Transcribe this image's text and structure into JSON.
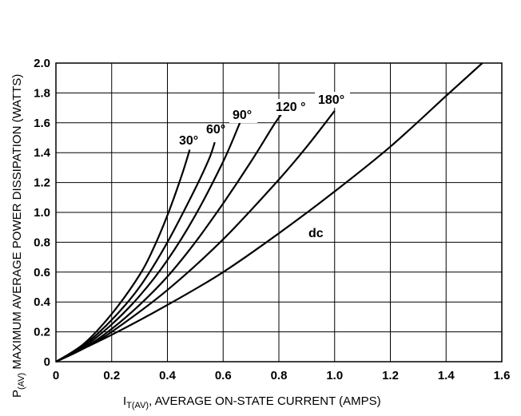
{
  "chart_data": {
    "type": "line",
    "xlabel": {
      "main": "I",
      "sub": "T(AV)",
      "rest": ", AVERAGE ON-STATE CURRENT (AMPS)"
    },
    "ylabel": {
      "main": "P",
      "sub": "(AV)",
      "rest": " MAXIMUM AVERAGE POWER DISSIPATION (WATTS)"
    },
    "xlim": [
      0,
      1.6
    ],
    "ylim": [
      0,
      2.0
    ],
    "x_ticks": [
      {
        "value": 0,
        "label": "0"
      },
      {
        "value": 0.2,
        "label": "0.2"
      },
      {
        "value": 0.4,
        "label": "0.4"
      },
      {
        "value": 0.6,
        "label": "0.6"
      },
      {
        "value": 0.8,
        "label": "0.8"
      },
      {
        "value": 1.0,
        "label": "1.0"
      },
      {
        "value": 1.2,
        "label": "1.2"
      },
      {
        "value": 1.4,
        "label": "1.4"
      },
      {
        "value": 1.6,
        "label": "1.6"
      }
    ],
    "y_ticks": [
      {
        "value": 0,
        "label": "0"
      },
      {
        "value": 0.2,
        "label": "0.2"
      },
      {
        "value": 0.4,
        "label": "0.4"
      },
      {
        "value": 0.6,
        "label": "0.6"
      },
      {
        "value": 0.8,
        "label": "0.8"
      },
      {
        "value": 1.0,
        "label": "1.0"
      },
      {
        "value": 1.2,
        "label": "1.2"
      },
      {
        "value": 1.4,
        "label": "1.4"
      },
      {
        "value": 1.6,
        "label": "1.6"
      },
      {
        "value": 1.8,
        "label": "1.8"
      },
      {
        "value": 2.0,
        "label": "2.0"
      }
    ],
    "grid": true,
    "series": [
      {
        "name": "30°",
        "points": [
          [
            0,
            0
          ],
          [
            0.1,
            0.12
          ],
          [
            0.2,
            0.32
          ],
          [
            0.3,
            0.58
          ],
          [
            0.35,
            0.76
          ],
          [
            0.4,
            0.98
          ],
          [
            0.45,
            1.24
          ],
          [
            0.48,
            1.42
          ]
        ]
      },
      {
        "name": "60°",
        "points": [
          [
            0,
            0
          ],
          [
            0.1,
            0.11
          ],
          [
            0.2,
            0.28
          ],
          [
            0.3,
            0.5
          ],
          [
            0.4,
            0.8
          ],
          [
            0.5,
            1.16
          ],
          [
            0.55,
            1.36
          ],
          [
            0.57,
            1.47
          ]
        ]
      },
      {
        "name": "90°",
        "points": [
          [
            0,
            0
          ],
          [
            0.1,
            0.1
          ],
          [
            0.2,
            0.25
          ],
          [
            0.3,
            0.44
          ],
          [
            0.4,
            0.68
          ],
          [
            0.5,
            0.98
          ],
          [
            0.6,
            1.34
          ],
          [
            0.66,
            1.6
          ]
        ]
      },
      {
        "name": "120 °",
        "points": [
          [
            0,
            0
          ],
          [
            0.1,
            0.09
          ],
          [
            0.2,
            0.22
          ],
          [
            0.3,
            0.38
          ],
          [
            0.4,
            0.57
          ],
          [
            0.5,
            0.8
          ],
          [
            0.6,
            1.06
          ],
          [
            0.7,
            1.34
          ],
          [
            0.78,
            1.58
          ],
          [
            0.81,
            1.66
          ]
        ]
      },
      {
        "name": "180°",
        "points": [
          [
            0,
            0
          ],
          [
            0.1,
            0.09
          ],
          [
            0.2,
            0.2
          ],
          [
            0.4,
            0.48
          ],
          [
            0.6,
            0.82
          ],
          [
            0.8,
            1.22
          ],
          [
            0.9,
            1.44
          ],
          [
            1.0,
            1.68
          ]
        ]
      },
      {
        "name": "dc",
        "points": [
          [
            0,
            0
          ],
          [
            0.2,
            0.18
          ],
          [
            0.4,
            0.38
          ],
          [
            0.6,
            0.6
          ],
          [
            0.8,
            0.86
          ],
          [
            1.0,
            1.14
          ],
          [
            1.2,
            1.44
          ],
          [
            1.4,
            1.78
          ],
          [
            1.53,
            2.0
          ]
        ]
      }
    ]
  }
}
